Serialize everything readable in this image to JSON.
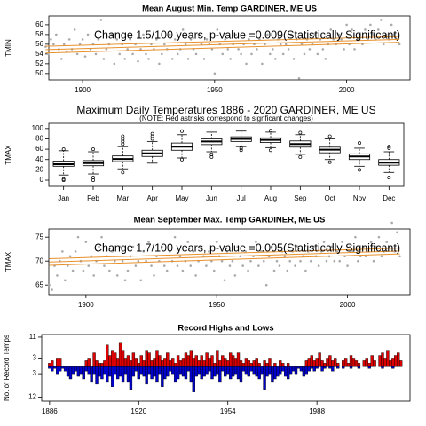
{
  "chart_data": [
    {
      "type": "scatter",
      "title": "Mean August Min. Temp GARDINER, ME US",
      "ylabel": "TMIN",
      "annotation": "Change 1.5/100 years, p-value =0.009(Statistically Significant)",
      "xlim": [
        1887.2,
        2024
      ],
      "ylim": [
        48.7,
        61.8
      ],
      "xticks": [
        1900,
        1950,
        2000
      ],
      "yticks": [
        50,
        52,
        54,
        56,
        58,
        60
      ],
      "point_color": "#aaaaaa",
      "x": [
        1886,
        1887,
        1888,
        1889,
        1890,
        1891,
        1892,
        1893,
        1894,
        1895,
        1896,
        1897,
        1898,
        1899,
        1900,
        1901,
        1902,
        1903,
        1904,
        1905,
        1906,
        1907,
        1908,
        1909,
        1910,
        1911,
        1912,
        1913,
        1914,
        1915,
        1916,
        1917,
        1918,
        1919,
        1920,
        1921,
        1922,
        1923,
        1924,
        1925,
        1926,
        1927,
        1928,
        1929,
        1930,
        1931,
        1932,
        1933,
        1934,
        1935,
        1936,
        1937,
        1938,
        1939,
        1940,
        1941,
        1942,
        1943,
        1944,
        1945,
        1946,
        1947,
        1948,
        1949,
        1950,
        1951,
        1952,
        1953,
        1954,
        1955,
        1956,
        1957,
        1958,
        1959,
        1960,
        1961,
        1962,
        1963,
        1964,
        1965,
        1966,
        1967,
        1968,
        1969,
        1970,
        1971,
        1972,
        1973,
        1974,
        1975,
        1976,
        1977,
        1978,
        1979,
        1980,
        1981,
        1982,
        1983,
        1984,
        1985,
        1986,
        1987,
        1988,
        1989,
        1990,
        1991,
        1992,
        1993,
        1994,
        1995,
        1996,
        1997,
        1998,
        1999,
        2000,
        2001,
        2002,
        2003,
        2004,
        2005,
        2006,
        2007,
        2008,
        2009,
        2010,
        2011,
        2012,
        2013,
        2014,
        2015,
        2016,
        2017,
        2018,
        2019,
        2020
      ],
      "values": [
        55.5,
        54,
        57,
        56,
        58,
        55,
        53,
        56,
        54.5,
        57,
        55,
        59,
        54,
        56,
        57,
        53.5,
        58,
        55,
        56,
        54,
        57,
        61,
        53,
        55,
        56,
        58,
        52,
        57,
        54,
        56,
        53,
        55,
        57,
        54,
        56,
        52.5,
        55,
        58,
        54,
        53,
        56,
        55,
        57,
        52,
        54,
        56,
        55,
        58,
        53,
        57,
        54,
        55,
        59,
        56,
        53,
        57,
        55,
        54,
        58,
        56,
        53,
        57,
        56,
        55,
        50,
        59,
        56,
        54,
        57,
        55,
        53,
        56,
        58,
        55,
        54,
        56,
        52,
        57,
        54,
        56,
        55,
        57,
        52,
        56,
        58,
        54,
        55,
        53,
        57,
        56,
        54,
        56,
        55,
        58,
        53,
        57,
        49,
        56,
        54,
        57,
        55,
        56,
        58,
        54,
        57,
        55,
        53,
        56,
        59,
        57,
        56,
        58,
        57,
        55,
        60,
        56,
        59,
        55,
        57,
        58,
        56,
        59,
        57,
        60,
        58,
        57,
        59,
        61,
        56,
        58,
        57,
        60,
        58,
        57,
        56
      ],
      "trend_x": [
        1886,
        2020
      ],
      "trend_lines": [
        {
          "color": "#e8902a",
          "values": [
            54.9,
            57.0
          ]
        },
        {
          "color": "#e8902a",
          "values": [
            54.2,
            56.4
          ]
        },
        {
          "color": "#e8902a",
          "values": [
            55.6,
            57.6
          ]
        }
      ]
    },
    {
      "type": "boxplot",
      "title": "Maximum Daily Temperatures 1886 - 2020 GARDINER, ME US",
      "subtitle": "(NOTE: Red astrisks correspond to signficant changes)",
      "ylabel": "TMAX",
      "ylim": [
        -12,
        110
      ],
      "yticks": [
        0,
        20,
        40,
        60,
        80,
        100
      ],
      "categories": [
        "Jan",
        "Feb",
        "Mar",
        "Apr",
        "May",
        "Jun",
        "Jul",
        "Aug",
        "Sep",
        "Oct",
        "Nov",
        "Dec"
      ],
      "boxes": [
        {
          "whislo": 10,
          "q1": 27,
          "med": 31,
          "q3": 37,
          "whishi": 57,
          "fliers": [
            0,
            2,
            60
          ]
        },
        {
          "whislo": 12,
          "q1": 28,
          "med": 33,
          "q3": 38,
          "whishi": 55,
          "fliers": [
            0,
            5,
            60
          ]
        },
        {
          "whislo": 22,
          "q1": 36,
          "med": 41,
          "q3": 47,
          "whishi": 65,
          "fliers": [
            15,
            70,
            75,
            80,
            85
          ]
        },
        {
          "whislo": 33,
          "q1": 46,
          "med": 52,
          "q3": 58,
          "whishi": 75,
          "fliers": [
            80,
            85,
            90
          ]
        },
        {
          "whislo": 43,
          "q1": 58,
          "med": 65,
          "q3": 72,
          "whishi": 88,
          "fliers": [
            40,
            95
          ]
        },
        {
          "whislo": 55,
          "q1": 69,
          "med": 75,
          "q3": 80,
          "whishi": 93,
          "fliers": [
            45,
            50
          ]
        },
        {
          "whislo": 65,
          "q1": 75,
          "med": 80,
          "q3": 84,
          "whishi": 95,
          "fliers": [
            58,
            62
          ]
        },
        {
          "whislo": 63,
          "q1": 73,
          "med": 78,
          "q3": 82,
          "whishi": 93,
          "fliers": [
            58,
            96
          ]
        },
        {
          "whislo": 50,
          "q1": 64,
          "med": 70,
          "q3": 76,
          "whishi": 88,
          "fliers": [
            45,
            92
          ]
        },
        {
          "whislo": 40,
          "q1": 53,
          "med": 59,
          "q3": 64,
          "whishi": 80,
          "fliers": [
            35,
            85
          ]
        },
        {
          "whislo": 27,
          "q1": 40,
          "med": 46,
          "q3": 51,
          "whishi": 62,
          "fliers": [
            20,
            72
          ]
        },
        {
          "whislo": 15,
          "q1": 29,
          "med": 34,
          "q3": 40,
          "whishi": 55,
          "fliers": [
            5,
            62,
            65
          ]
        }
      ],
      "box_color": "#ffffff"
    },
    {
      "type": "scatter",
      "title": "Mean September Max. Temp GARDINER, ME US",
      "ylabel": "TMAX",
      "annotation": "Change 1.7/100 years, p-value =0.005(Statistically Significant)",
      "xlim": [
        1885.8,
        2023.9
      ],
      "ylim": [
        63,
        76.7
      ],
      "xticks": [
        1900,
        1950,
        2000
      ],
      "yticks": [
        65,
        70,
        75
      ],
      "point_color": "#aaaaaa",
      "x": [
        1886,
        1887,
        1888,
        1889,
        1890,
        1891,
        1892,
        1893,
        1894,
        1895,
        1896,
        1897,
        1898,
        1899,
        1900,
        1901,
        1902,
        1903,
        1904,
        1905,
        1906,
        1907,
        1908,
        1909,
        1910,
        1911,
        1912,
        1913,
        1914,
        1915,
        1916,
        1917,
        1918,
        1919,
        1920,
        1921,
        1922,
        1923,
        1924,
        1925,
        1926,
        1927,
        1928,
        1929,
        1930,
        1931,
        1932,
        1933,
        1934,
        1935,
        1936,
        1937,
        1938,
        1939,
        1940,
        1941,
        1942,
        1943,
        1944,
        1945,
        1946,
        1947,
        1948,
        1949,
        1950,
        1951,
        1952,
        1953,
        1954,
        1955,
        1956,
        1957,
        1958,
        1959,
        1960,
        1961,
        1962,
        1963,
        1964,
        1965,
        1966,
        1967,
        1968,
        1969,
        1970,
        1971,
        1972,
        1973,
        1974,
        1975,
        1976,
        1977,
        1978,
        1979,
        1980,
        1981,
        1982,
        1983,
        1984,
        1985,
        1986,
        1987,
        1988,
        1989,
        1990,
        1991,
        1992,
        1993,
        1994,
        1995,
        1996,
        1997,
        1998,
        1999,
        2000,
        2001,
        2002,
        2003,
        2004,
        2005,
        2006,
        2007,
        2008,
        2009,
        2010,
        2011,
        2012,
        2013,
        2014,
        2015,
        2016,
        2017,
        2018,
        2019,
        2020
      ],
      "values": [
        65,
        64,
        69,
        67,
        70,
        72,
        66,
        69,
        71,
        68,
        72,
        75,
        70,
        68,
        74,
        69,
        71,
        67,
        70,
        73,
        75,
        69,
        71,
        68,
        72,
        70,
        67,
        73,
        70,
        66,
        68,
        71,
        73,
        69,
        70,
        66,
        72,
        70,
        74,
        69,
        67,
        71,
        70,
        73,
        69,
        68,
        72,
        70,
        75,
        69,
        71,
        68,
        70,
        74,
        69,
        72,
        67,
        70,
        73,
        71,
        69,
        72,
        70,
        68,
        74,
        71,
        70,
        66,
        72,
        69,
        70,
        67,
        73,
        71,
        69,
        72,
        68,
        70,
        71,
        74,
        69,
        72,
        70,
        65,
        71,
        73,
        68,
        70,
        69,
        72,
        71,
        68,
        70,
        72,
        69,
        73,
        70,
        71,
        68,
        72,
        70,
        73,
        71,
        69,
        72,
        74,
        70,
        71,
        73,
        70,
        72,
        70,
        74,
        71,
        69,
        73,
        72,
        75,
        70,
        71,
        73,
        71,
        72,
        74,
        70,
        73,
        75,
        71,
        72,
        74,
        73,
        78,
        72,
        76,
        71
      ],
      "trend_x": [
        1886,
        2020
      ],
      "trend_lines": [
        {
          "color": "#e8902a",
          "values": [
            69.8,
            72.1
          ]
        },
        {
          "color": "#e8902a",
          "values": [
            69.1,
            71.5
          ]
        },
        {
          "color": "#e8902a",
          "values": [
            70.5,
            72.7
          ]
        }
      ]
    },
    {
      "type": "bar",
      "title": "Record Highs and Lows",
      "ylabel": "No. of Record Temps",
      "xlim": [
        1883,
        2023.5
      ],
      "ylim": [
        -13.5,
        12
      ],
      "xticks": [
        1886,
        1920,
        1954,
        1988
      ],
      "yticks": [
        {
          "value": 11,
          "label": "11"
        },
        {
          "value": 3,
          "label": "3"
        },
        {
          "value": -3,
          "label": "3"
        },
        {
          "value": -12,
          "label": "12"
        }
      ],
      "x": [
        1886,
        1887,
        1888,
        1889,
        1890,
        1891,
        1892,
        1893,
        1894,
        1895,
        1896,
        1897,
        1898,
        1899,
        1900,
        1901,
        1902,
        1903,
        1904,
        1905,
        1906,
        1907,
        1908,
        1909,
        1910,
        1911,
        1912,
        1913,
        1914,
        1915,
        1916,
        1917,
        1918,
        1919,
        1920,
        1921,
        1922,
        1923,
        1924,
        1925,
        1926,
        1927,
        1928,
        1929,
        1930,
        1931,
        1932,
        1933,
        1934,
        1935,
        1936,
        1937,
        1938,
        1939,
        1940,
        1941,
        1942,
        1943,
        1944,
        1945,
        1946,
        1947,
        1948,
        1949,
        1950,
        1951,
        1952,
        1953,
        1954,
        1955,
        1956,
        1957,
        1958,
        1959,
        1960,
        1961,
        1962,
        1963,
        1964,
        1965,
        1966,
        1967,
        1968,
        1969,
        1970,
        1971,
        1972,
        1973,
        1974,
        1975,
        1976,
        1977,
        1978,
        1979,
        1980,
        1981,
        1982,
        1983,
        1984,
        1985,
        1986,
        1987,
        1988,
        1989,
        1990,
        1991,
        1992,
        1993,
        1994,
        1995,
        1996,
        1997,
        1998,
        1999,
        2000,
        2001,
        2002,
        2003,
        2004,
        2005,
        2006,
        2007,
        2008,
        2009,
        2010,
        2011,
        2012,
        2013,
        2014,
        2015,
        2016,
        2017,
        2018,
        2019,
        2020
      ],
      "series": [
        {
          "color": "#dd0000",
          "values": [
            1,
            2,
            0,
            3,
            3,
            0,
            0,
            0,
            0,
            0,
            0,
            0,
            0,
            0,
            2,
            3,
            0,
            5,
            2,
            1,
            1,
            2,
            8,
            4,
            6,
            5,
            3,
            9,
            6,
            3,
            4,
            2,
            5,
            3,
            1,
            4,
            2,
            6,
            5,
            2,
            3,
            6,
            4,
            2,
            3,
            5,
            2,
            3,
            1,
            4,
            2,
            3,
            5,
            4,
            6,
            3,
            4,
            2,
            4,
            2,
            5,
            3,
            4,
            1,
            6,
            2,
            4,
            3,
            2,
            5,
            4,
            3,
            5,
            2,
            1,
            3,
            2,
            1,
            2,
            3,
            1,
            0,
            2,
            1,
            3,
            0,
            1,
            0,
            2,
            1,
            0,
            1,
            0,
            0,
            0,
            0,
            0,
            0,
            2,
            3,
            4,
            2,
            3,
            5,
            2,
            1,
            3,
            4,
            2,
            3,
            1,
            0,
            2,
            3,
            1,
            4,
            3,
            2,
            1,
            0,
            2,
            3,
            1,
            4,
            2,
            0,
            4,
            5,
            3,
            6,
            2,
            3,
            4,
            5,
            2
          ]
        },
        {
          "color": "#0000cc",
          "values": [
            -1,
            -2,
            -1,
            -3,
            -2,
            -1,
            -2,
            -4,
            -5,
            -3,
            -2,
            -4,
            -3,
            -5,
            -2,
            -3,
            -6,
            -3,
            -7,
            -4,
            -5,
            -3,
            -6,
            -4,
            -8,
            -3,
            -5,
            -4,
            -6,
            -3,
            -6,
            -9,
            -4,
            -2,
            -5,
            -3,
            -4,
            -7,
            -3,
            -5,
            -4,
            -6,
            -3,
            -8,
            -5,
            -4,
            -2,
            -3,
            -6,
            -5,
            -3,
            -4,
            -5,
            -2,
            -6,
            -10,
            -4,
            -3,
            -5,
            -4,
            -3,
            -2,
            -5,
            -4,
            -3,
            -6,
            -2,
            -4,
            -3,
            -5,
            -4,
            -3,
            -5,
            -6,
            -2,
            -3,
            -4,
            -2,
            -3,
            -4,
            -5,
            -3,
            -9,
            -4,
            -3,
            -6,
            -5,
            -4,
            -3,
            -2,
            -4,
            -5,
            -3,
            -2,
            -3,
            -1,
            -2,
            -4,
            -3,
            -2,
            -1,
            -2,
            -1,
            0,
            -2,
            -1,
            0,
            -1,
            -2,
            0,
            -1,
            0,
            -1,
            0,
            0,
            -1,
            0,
            0,
            -1,
            0,
            0,
            0,
            -1,
            0,
            0,
            0,
            0,
            -1,
            0,
            0,
            0,
            -1,
            0,
            0,
            0
          ]
        }
      ]
    }
  ]
}
